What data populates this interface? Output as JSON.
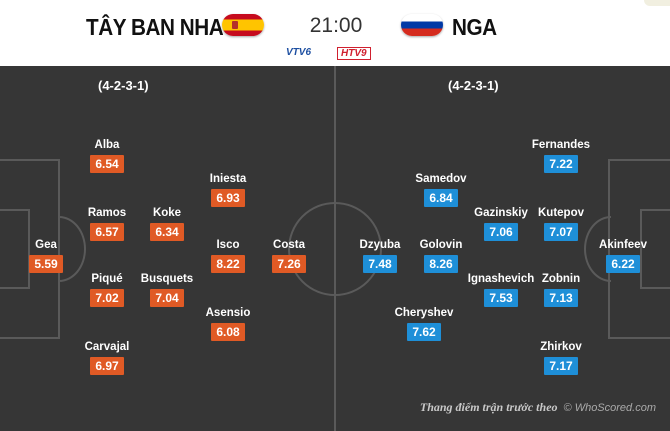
{
  "header": {
    "home_team": "TÂY BAN NHA",
    "away_team": "NGA",
    "kickoff": "21:00",
    "home_flag_icon": "spain-flag-icon",
    "away_flag_icon": "russia-flag-icon",
    "broadcasters": [
      "VTV6",
      "HTV9"
    ]
  },
  "home": {
    "formation": "(4-2-3-1)",
    "players": [
      {
        "name": "Gea",
        "rating": "5.59"
      },
      {
        "name": "Alba",
        "rating": "6.54"
      },
      {
        "name": "Ramos",
        "rating": "6.57"
      },
      {
        "name": "Piqué",
        "rating": "7.02"
      },
      {
        "name": "Carvajal",
        "rating": "6.97"
      },
      {
        "name": "Koke",
        "rating": "6.34"
      },
      {
        "name": "Busquets",
        "rating": "7.04"
      },
      {
        "name": "Iniesta",
        "rating": "6.93"
      },
      {
        "name": "Isco",
        "rating": "8.22"
      },
      {
        "name": "Asensio",
        "rating": "6.08"
      },
      {
        "name": "Costa",
        "rating": "7.26"
      }
    ]
  },
  "away": {
    "formation": "(4-2-3-1)",
    "players": [
      {
        "name": "Akinfeev",
        "rating": "6.22"
      },
      {
        "name": "Fernandes",
        "rating": "7.22"
      },
      {
        "name": "Kutepov",
        "rating": "7.07"
      },
      {
        "name": "Zobnin",
        "rating": "7.13"
      },
      {
        "name": "Zhirkov",
        "rating": "7.17"
      },
      {
        "name": "Gazinskiy",
        "rating": "7.06"
      },
      {
        "name": "Ignashevich",
        "rating": "7.53"
      },
      {
        "name": "Samedov",
        "rating": "6.84"
      },
      {
        "name": "Golovin",
        "rating": "8.26"
      },
      {
        "name": "Cheryshev",
        "rating": "7.62"
      },
      {
        "name": "Dzyuba",
        "rating": "7.48"
      }
    ]
  },
  "footer": {
    "note": "Thang điểm trận trước theo",
    "credit": "© WhoScored.com"
  },
  "colors": {
    "pitch": "#363636",
    "pitch_lines": "#5a5a5a",
    "home_rating": "#e05a25",
    "away_rating": "#1e8fd8"
  }
}
